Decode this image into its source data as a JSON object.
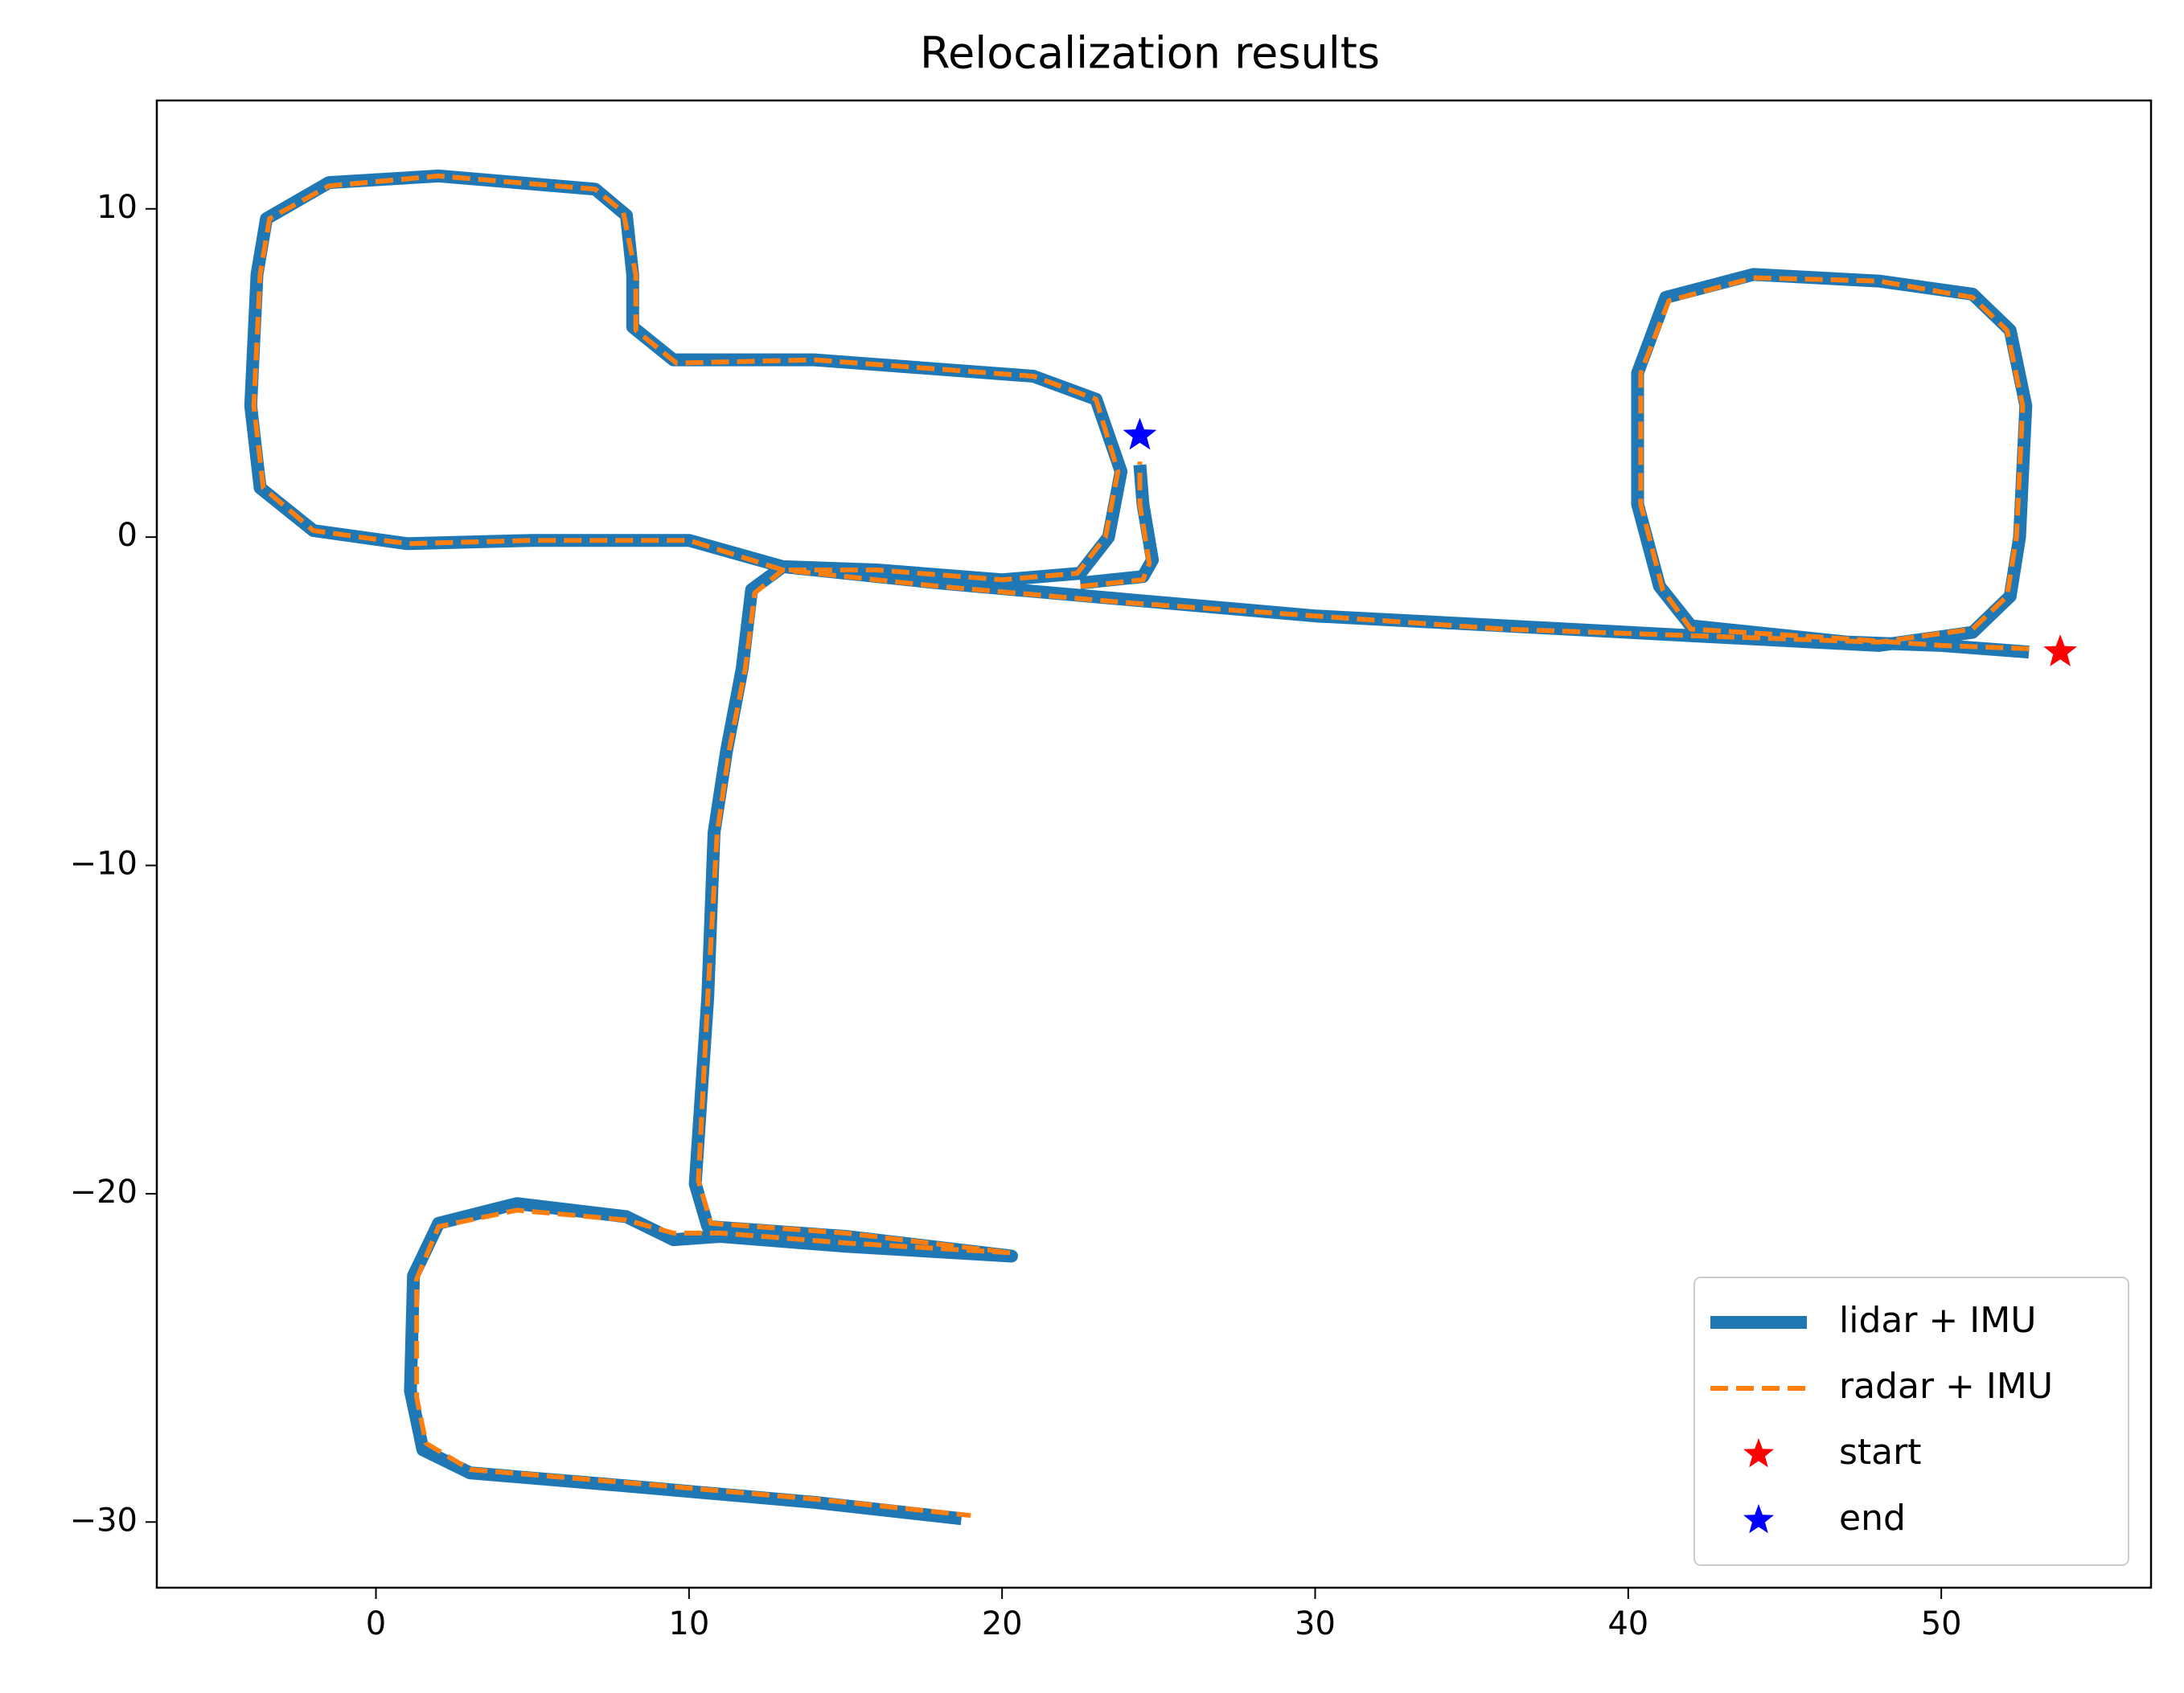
{
  "chart_data": {
    "type": "line",
    "title": "Relocalization results",
    "xlim": [
      -7,
      56.7
    ],
    "ylim": [
      -32,
      13.3
    ],
    "xticks": [
      0,
      10,
      20,
      30,
      40,
      50
    ],
    "yticks": [
      {
        "value": -30,
        "label": "−30"
      },
      {
        "value": -20,
        "label": "−20"
      },
      {
        "value": -10,
        "label": "−10"
      },
      0,
      10
    ],
    "legend": "lower right",
    "series": [
      {
        "name": "lidar + IMU",
        "color": "#1f77b4",
        "linestyle": "solid",
        "x": [
          52.8,
          50,
          47,
          42,
          41,
          40.3,
          40.3,
          41.2,
          44,
          48,
          51,
          52.2,
          52.7,
          52.5,
          52.2,
          51,
          48,
          42,
          36,
          30,
          24,
          18,
          13,
          12,
          11.7,
          11.2,
          10.8,
          10.6,
          10.2,
          10.6,
          15,
          20.3,
          15,
          11,
          9.5,
          8,
          4.5,
          2,
          1.2,
          1.1,
          1.5,
          3,
          8,
          14,
          18.7,
          null,
          13,
          10,
          5,
          1,
          -2,
          -3.7,
          -4,
          -3.8,
          -3.5,
          -1.5,
          2,
          7,
          8,
          8.2,
          8.2,
          9.5,
          14,
          21,
          23,
          23.8,
          23.4,
          22.5,
          20,
          16,
          13,
          null,
          22.5,
          24.5,
          24.8,
          24.5,
          24.4
        ],
        "values": [
          -3.5,
          -3.3,
          -3.2,
          -2.7,
          -1.5,
          1,
          5,
          7.3,
          8,
          7.8,
          7.4,
          6.3,
          4,
          0,
          -1.8,
          -2.9,
          -3.3,
          -3.0,
          -2.7,
          -2.4,
          -1.9,
          -1.4,
          -0.9,
          -1.6,
          -4,
          -6.5,
          -9,
          -14,
          -19.7,
          -21,
          -21.3,
          -21.9,
          -21.6,
          -21.3,
          -21.4,
          -20.7,
          -20.3,
          -20.9,
          -22.5,
          -26,
          -27.8,
          -28.5,
          -28.9,
          -29.4,
          -29.9,
          null,
          -0.9,
          -0.1,
          -0.1,
          -0.2,
          0.2,
          1.5,
          4,
          8,
          9.7,
          10.8,
          11,
          10.6,
          9.8,
          8,
          6.4,
          5.4,
          5.4,
          4.9,
          4.2,
          2,
          0,
          -1.1,
          -1.3,
          -1.0,
          -0.9,
          null,
          -1.4,
          -1.2,
          -0.7,
          1,
          2.2
        ]
      },
      {
        "name": "radar + IMU",
        "color": "#ff7f0e",
        "linestyle": "dashed",
        "x": [
          52.8,
          50,
          47,
          42,
          41.1,
          40.4,
          40.4,
          41.3,
          44,
          48,
          51,
          52.1,
          52.6,
          52.4,
          52.1,
          51,
          48,
          42,
          36,
          30,
          24,
          18,
          13,
          12.1,
          11.8,
          11.3,
          10.9,
          10.6,
          10.3,
          10.7,
          15,
          20.3,
          15,
          11,
          9.5,
          8,
          4.5,
          2,
          1.3,
          1.3,
          1.6,
          3,
          8,
          14,
          19,
          null,
          13,
          10,
          5,
          1,
          -2,
          -3.6,
          -3.9,
          -3.7,
          -3.4,
          -1.5,
          2,
          7,
          7.9,
          8.3,
          8.3,
          9.6,
          14,
          21,
          23,
          23.7,
          23.3,
          22.4,
          20,
          16,
          13,
          null,
          22.5,
          24.5,
          24.7,
          24.4,
          24.4
        ],
        "values": [
          -3.4,
          -3.3,
          -3.1,
          -2.8,
          -1.6,
          1,
          5,
          7.2,
          7.9,
          7.8,
          7.3,
          6.3,
          4,
          0,
          -1.8,
          -2.8,
          -3.2,
          -3.0,
          -2.8,
          -2.4,
          -2.0,
          -1.5,
          -1.0,
          -1.7,
          -4,
          -6.4,
          -9,
          -14,
          -19.6,
          -20.9,
          -21.2,
          -21.8,
          -21.5,
          -21.2,
          -21.2,
          -20.8,
          -20.5,
          -21.0,
          -22.6,
          -26.2,
          -27.6,
          -28.4,
          -28.8,
          -29.3,
          -29.8,
          null,
          -1.0,
          -0.1,
          -0.1,
          -0.2,
          0.2,
          1.5,
          4,
          8,
          9.7,
          10.7,
          11,
          10.6,
          9.9,
          8,
          6.3,
          5.3,
          5.4,
          4.9,
          4.2,
          2,
          0,
          -1.1,
          -1.3,
          -1.0,
          -1.0,
          null,
          -1.5,
          -1.3,
          -0.8,
          1,
          2.3
        ]
      },
      {
        "name": "start",
        "color": "#ff0000",
        "marker": "star",
        "x": [
          53.8
        ],
        "values": [
          -3.5
        ]
      },
      {
        "name": "end",
        "color": "#0000ff",
        "marker": "star",
        "x": [
          24.4
        ],
        "values": [
          3.1
        ]
      }
    ]
  }
}
